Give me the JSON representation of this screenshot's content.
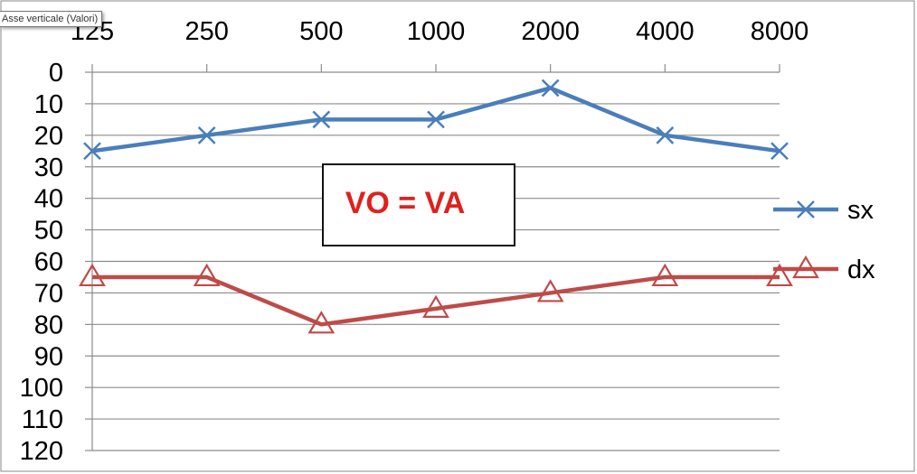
{
  "tooltip": "Asse verticale (Valori)",
  "annotation": {
    "text": "VO = VA",
    "color": "#e0211d"
  },
  "chart_data": {
    "type": "line",
    "categories": [
      "125",
      "250",
      "500",
      "1000",
      "2000",
      "4000",
      "8000"
    ],
    "y_ticks": [
      0,
      10,
      20,
      30,
      40,
      50,
      60,
      70,
      80,
      90,
      100,
      110,
      120
    ],
    "ylim": [
      0,
      120
    ],
    "y_reversed": true,
    "x_axis_position": "top",
    "grid": true,
    "legend_position": "right",
    "series": [
      {
        "name": "sx",
        "marker": "cross",
        "color": "#4a7ebb",
        "values": [
          25,
          20,
          15,
          15,
          5,
          20,
          25
        ]
      },
      {
        "name": "dx",
        "marker": "triangle",
        "color": "#be4b48",
        "values": [
          65,
          65,
          80,
          75,
          70,
          65,
          65
        ]
      }
    ]
  }
}
